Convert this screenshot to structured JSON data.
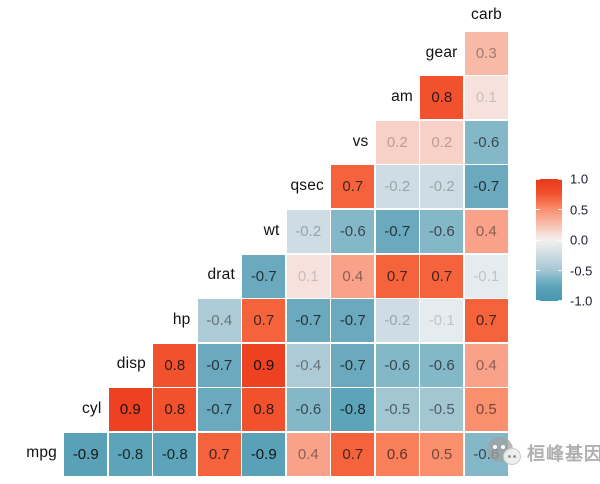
{
  "chart_data": {
    "type": "heatmap",
    "title": "",
    "description": "Lower-triangular correlation heatmap (mtcars variables), labels on the diagonal",
    "columns_left_to_right": [
      "mpg",
      "cyl",
      "disp",
      "hp",
      "drat",
      "wt",
      "qsec",
      "vs",
      "am",
      "gear",
      "carb"
    ],
    "rows_top_to_bottom": [
      {
        "label": "carb",
        "values": []
      },
      {
        "label": "gear",
        "values": [
          0.3
        ]
      },
      {
        "label": "am",
        "values": [
          0.8,
          0.1
        ]
      },
      {
        "label": "vs",
        "values": [
          0.2,
          0.2,
          -0.6
        ]
      },
      {
        "label": "qsec",
        "values": [
          0.7,
          -0.2,
          -0.2,
          -0.7
        ]
      },
      {
        "label": "wt",
        "values": [
          -0.2,
          -0.6,
          -0.7,
          -0.6,
          0.4
        ]
      },
      {
        "label": "drat",
        "values": [
          -0.7,
          0.1,
          0.4,
          0.7,
          0.7,
          -0.1
        ]
      },
      {
        "label": "hp",
        "values": [
          -0.4,
          0.7,
          -0.7,
          -0.7,
          -0.2,
          -0.1,
          0.7
        ]
      },
      {
        "label": "disp",
        "values": [
          0.8,
          -0.7,
          0.9,
          -0.4,
          -0.7,
          -0.6,
          -0.6,
          0.4
        ]
      },
      {
        "label": "cyl",
        "values": [
          0.9,
          0.8,
          -0.7,
          0.8,
          -0.6,
          -0.8,
          -0.5,
          -0.5,
          0.5
        ]
      },
      {
        "label": "mpg",
        "values": [
          -0.9,
          -0.8,
          -0.8,
          0.7,
          -0.9,
          0.4,
          0.7,
          0.6,
          0.5,
          -0.6
        ]
      }
    ],
    "value_colors": {
      "0.9": "#ed4122",
      "0.8": "#f1512c",
      "0.7": "#f4633c",
      "0.6": "#f97e5a",
      "0.5": "#fa8f6e",
      "0.4": "#f9a189",
      "0.3": "#f8b9a6",
      "0.2": "#f8d1c6",
      "0.1": "#f6e1dd",
      "-0.1": "#e4ecef",
      "-0.2": "#cedde4",
      "-0.4": "#adcbd7",
      "-0.5": "#a3c6d3",
      "-0.6": "#84b7c8",
      "-0.7": "#6aa9be",
      "-0.8": "#5ba4ba",
      "-0.9": "#58a1b7"
    },
    "legend": {
      "ticks": [
        "1.0",
        "0.5",
        "0.0",
        "-0.5",
        "-1.0"
      ],
      "range": [
        -1,
        1
      ],
      "high_color": "#e73a1b",
      "mid_color": "#f4f1f0",
      "low_color": "#4897b2",
      "position": "right"
    },
    "grid_line_color": "#ffffff",
    "background_color": "#ffffff"
  },
  "watermark": {
    "text": "桓峰基因"
  }
}
